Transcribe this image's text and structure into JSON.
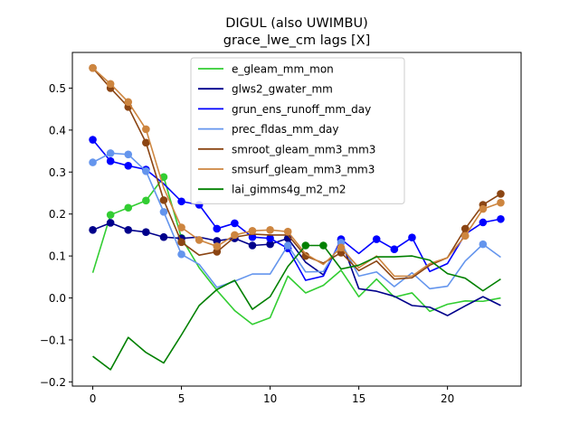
{
  "chart_data": {
    "type": "line",
    "title": "DIGUL (also UWIMBU)",
    "subtitle": "grace_lwe_cm lags [X]",
    "xlabel": "",
    "ylabel": "",
    "xlim": [
      -1.15,
      24.15
    ],
    "ylim": [
      -0.21,
      0.585
    ],
    "xticks": [
      0,
      5,
      10,
      15,
      20
    ],
    "yticks": [
      -0.2,
      -0.1,
      0.0,
      0.1,
      0.2,
      0.3,
      0.4,
      0.5
    ],
    "ytick_labels": [
      "−0.2",
      "−0.1",
      "0.0",
      "0.1",
      "0.2",
      "0.3",
      "0.4",
      "0.5"
    ],
    "xtick_labels": [
      "0",
      "5",
      "10",
      "15",
      "20"
    ],
    "grid": false,
    "legend_position": "top-center",
    "x": [
      0,
      1,
      2,
      3,
      4,
      5,
      6,
      7,
      8,
      9,
      10,
      11,
      12,
      13,
      14,
      15,
      16,
      17,
      18,
      19,
      20,
      21,
      22,
      23
    ],
    "series": [
      {
        "name": "e_gleam_mm_mon",
        "color": "#32cd32",
        "values": [
          0.06,
          0.198,
          0.215,
          0.232,
          0.288,
          0.143,
          0.072,
          0.018,
          -0.03,
          -0.063,
          -0.047,
          0.052,
          0.012,
          0.03,
          0.066,
          0.003,
          0.045,
          0.002,
          0.012,
          -0.032,
          -0.015,
          -0.007,
          -0.008,
          0.0
        ],
        "markers": [
          1,
          2,
          3,
          4,
          5
        ]
      },
      {
        "name": "glws2_gwater_mm",
        "color": "#00008b",
        "values": [
          0.162,
          0.179,
          0.162,
          0.157,
          0.145,
          0.142,
          0.145,
          0.136,
          0.142,
          0.125,
          0.128,
          0.142,
          0.085,
          0.055,
          0.138,
          0.022,
          0.016,
          0.004,
          -0.018,
          -0.022,
          -0.042,
          -0.019,
          0.003,
          -0.018
        ],
        "markers": [
          0,
          1,
          2,
          3,
          4,
          5,
          7,
          8,
          9,
          10,
          11,
          14
        ]
      },
      {
        "name": "grun_ens_runoff_mm_day",
        "color": "#0000ff",
        "values": [
          0.377,
          0.326,
          0.315,
          0.306,
          0.272,
          0.23,
          0.222,
          0.165,
          0.178,
          0.145,
          0.142,
          0.118,
          0.042,
          0.052,
          0.14,
          0.106,
          0.14,
          0.116,
          0.144,
          0.063,
          0.082,
          0.152,
          0.18,
          0.188
        ],
        "markers": [
          0,
          1,
          2,
          3,
          5,
          6,
          7,
          8,
          9,
          10,
          11,
          14,
          16,
          17,
          18,
          22,
          23
        ]
      },
      {
        "name": "prec_fldas_mm_day",
        "color": "#6495ed",
        "values": [
          0.323,
          0.345,
          0.342,
          0.302,
          0.205,
          0.104,
          0.08,
          0.025,
          0.04,
          0.057,
          0.057,
          0.125,
          0.062,
          0.063,
          0.132,
          0.052,
          0.062,
          0.027,
          0.06,
          0.022,
          0.028,
          0.088,
          0.128,
          0.097
        ],
        "markers": [
          0,
          1,
          2,
          3,
          4,
          5,
          11,
          14,
          22
        ]
      },
      {
        "name": "smroot_gleam_mm3_mm3",
        "color": "#8b4513",
        "values": [
          0.548,
          0.5,
          0.455,
          0.37,
          0.233,
          0.133,
          0.102,
          0.11,
          0.145,
          0.152,
          0.15,
          0.15,
          0.1,
          0.083,
          0.108,
          0.065,
          0.088,
          0.045,
          0.048,
          0.078,
          0.096,
          0.165,
          0.222,
          0.248
        ],
        "markers": [
          0,
          1,
          2,
          3,
          4,
          5,
          7,
          12,
          14,
          21,
          22,
          23
        ]
      },
      {
        "name": "smsurf_gleam_mm3_mm3",
        "color": "#cd853f",
        "values": [
          0.548,
          0.51,
          0.467,
          0.402,
          0.262,
          0.168,
          0.138,
          0.123,
          0.15,
          0.16,
          0.162,
          0.158,
          0.105,
          0.08,
          0.12,
          0.072,
          0.1,
          0.052,
          0.052,
          0.082,
          0.096,
          0.148,
          0.212,
          0.227
        ],
        "markers": [
          0,
          1,
          2,
          3,
          5,
          6,
          7,
          8,
          9,
          10,
          11,
          14,
          21,
          22,
          23
        ]
      },
      {
        "name": "lai_gimms4g_m2_m2",
        "color": "#008000",
        "values": [
          -0.139,
          -0.171,
          -0.094,
          -0.13,
          -0.155,
          -0.088,
          -0.018,
          0.02,
          0.042,
          -0.027,
          0.003,
          0.075,
          0.125,
          0.125,
          0.069,
          0.078,
          0.098,
          0.098,
          0.1,
          0.09,
          0.058,
          0.047,
          0.017,
          0.045
        ],
        "markers": [
          12,
          13
        ]
      }
    ]
  }
}
